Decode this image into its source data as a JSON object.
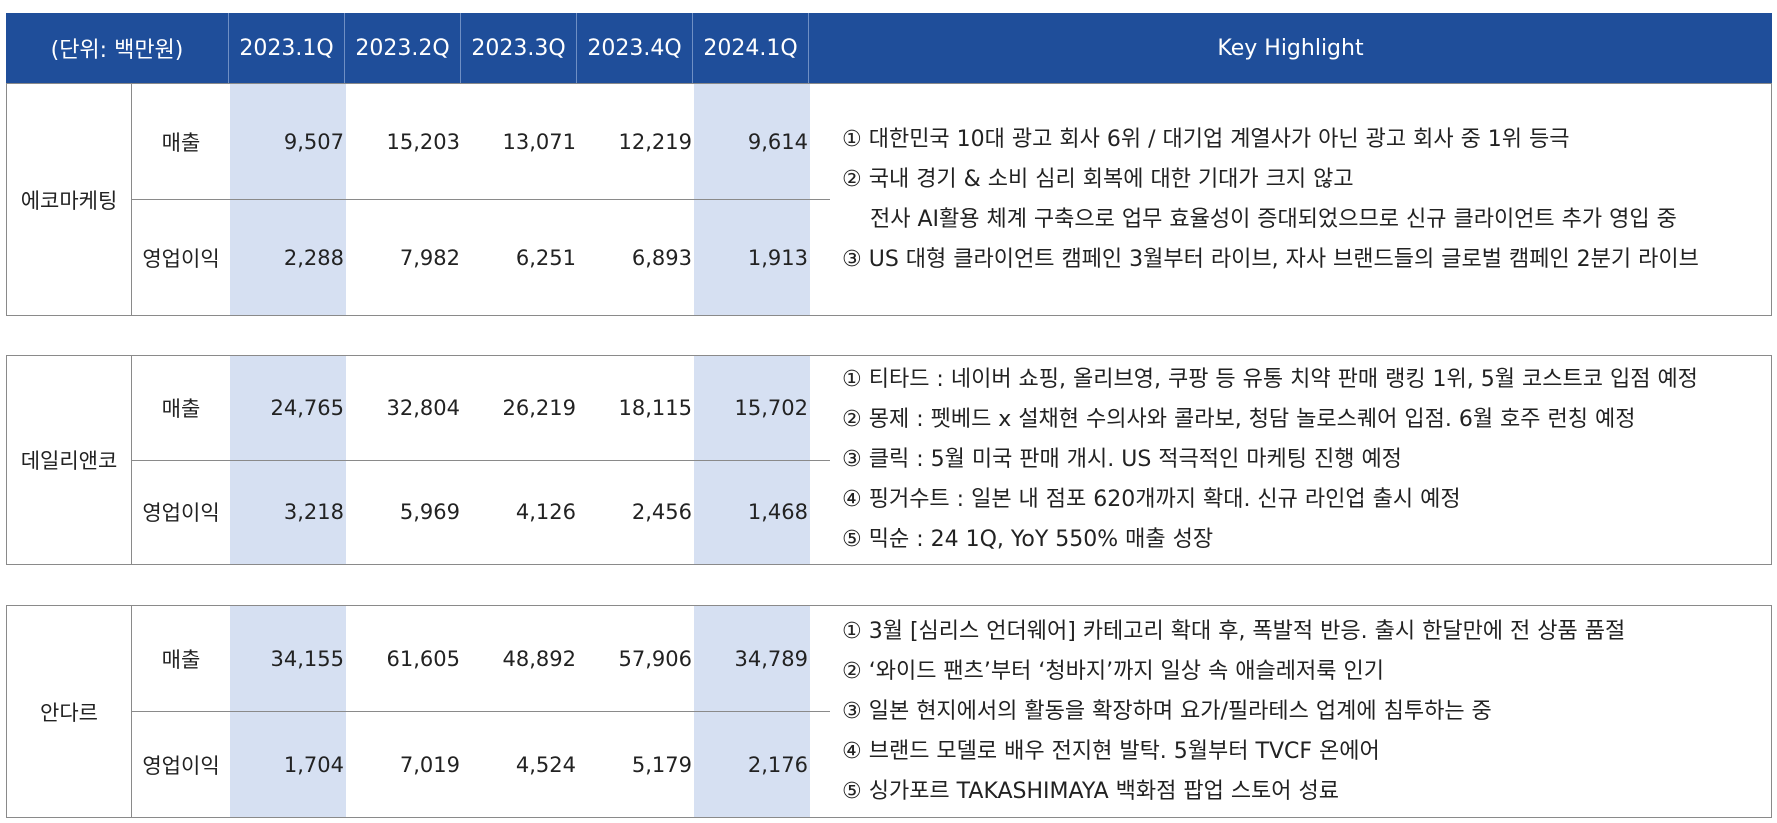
{
  "header": {
    "unit": "(단위: 백만원)",
    "quarters": [
      "2023.1Q",
      "2023.2Q",
      "2023.3Q",
      "2023.4Q",
      "2024.1Q"
    ],
    "key_highlight": "Key Highlight"
  },
  "companies": [
    {
      "name": "에코마케팅",
      "rows": [
        {
          "label": "매출",
          "values": [
            "9,507",
            "15,203",
            "13,071",
            "12,219",
            "9,614"
          ]
        },
        {
          "label": "영업이익",
          "values": [
            "2,288",
            "7,982",
            "6,251",
            "6,893",
            "1,913"
          ]
        }
      ],
      "highlights": [
        "① 대한민국 10대 광고 회사 6위 / 대기업 계열사가 아닌 광고 회사 중 1위 등극",
        "② 국내 경기 & 소비 심리 회복에 대한 기대가 크지 않고",
        "    전사 AI활용 체계 구축으로 업무 효율성이 증대되었으므로 신규 클라이언트 추가 영입 중",
        "③ US 대형 클라이언트 캠페인 3월부터 라이브, 자사 브랜드들의 글로벌 캠페인 2분기 라이브"
      ]
    },
    {
      "name": "데일리앤코",
      "rows": [
        {
          "label": "매출",
          "values": [
            "24,765",
            "32,804",
            "26,219",
            "18,115",
            "15,702"
          ]
        },
        {
          "label": "영업이익",
          "values": [
            "3,218",
            "5,969",
            "4,126",
            "2,456",
            "1,468"
          ]
        }
      ],
      "highlights": [
        "① 티타드 : 네이버 쇼핑, 올리브영, 쿠팡 등 유통 치약 판매 랭킹 1위, 5월 코스트코 입점 예정",
        "② 몽제 : 펫베드 x 설채현 수의사와 콜라보, 청담 놀로스퀘어 입점. 6월 호주 런칭 예정",
        "③ 클릭 : 5월 미국 판매 개시. US 적극적인 마케팅 진행 예정",
        "④ 핑거수트 : 일본 내 점포 620개까지 확대. 신규 라인업 출시 예정",
        "⑤ 믹순 : 24 1Q, YoY 550% 매출 성장"
      ]
    },
    {
      "name": "안다르",
      "rows": [
        {
          "label": "매출",
          "values": [
            "34,155",
            "61,605",
            "48,892",
            "57,906",
            "34,789"
          ]
        },
        {
          "label": "영업이익",
          "values": [
            "1,704",
            "7,019",
            "4,524",
            "5,179",
            "2,176"
          ]
        }
      ],
      "highlights": [
        "① 3월 [심리스 언더웨어] 카테고리 확대 후, 폭발적 반응. 출시 한달만에 전 상품 품절",
        "② ‘와이드 팬츠’부터 ‘청바지’까지 일상 속 애슬레저룩 인기",
        "③ 일본 현지에서의 활동을 확장하며 요가/필라테스 업계에 침투하는 중",
        "④ 브랜드 모델로 배우 전지현 발탁. 5월부터 TVCF 온에어",
        "⑤ 싱가포르 TAKASHIMAYA 백화점 팝업 스토어 성료"
      ]
    }
  ]
}
